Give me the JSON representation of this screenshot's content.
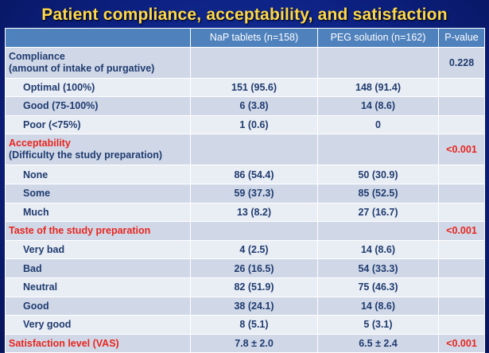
{
  "title": "Patient compliance, acceptability, and satisfaction",
  "headers": [
    "",
    "NaP tablets (n=158)",
    "PEG solution (n=162)",
    "P-value"
  ],
  "sections": {
    "compliance": {
      "label": "Compliance",
      "sublabel": "(amount of intake of purgative)",
      "p": "0.228",
      "rows": [
        {
          "label": "Optimal (100%)",
          "nap": "151 (95.6)",
          "peg": "148 (91.4)"
        },
        {
          "label": "Good (75-100%)",
          "nap": "6 (3.8)",
          "peg": "14 (8.6)"
        },
        {
          "label": "Poor (<75%)",
          "nap": "1 (0.6)",
          "peg": "0"
        }
      ]
    },
    "acceptability": {
      "label": "Acceptability",
      "sublabel": "(Difficulty the study preparation)",
      "p": "<0.001",
      "rows": [
        {
          "label": "None",
          "nap": "86 (54.4)",
          "peg": "50 (30.9)"
        },
        {
          "label": "Some",
          "nap": "59 (37.3)",
          "peg": "85 (52.5)"
        },
        {
          "label": "Much",
          "nap": "13 (8.2)",
          "peg": "27 (16.7)"
        }
      ]
    },
    "taste": {
      "label": "Taste of the study preparation",
      "p": "<0.001",
      "rows": [
        {
          "label": "Very bad",
          "nap": "4 (2.5)",
          "peg": "14 (8.6)"
        },
        {
          "label": "Bad",
          "nap": "26 (16.5)",
          "peg": "54 (33.3)"
        },
        {
          "label": "Neutral",
          "nap": "82 (51.9)",
          "peg": "75 (46.3)"
        },
        {
          "label": "Good",
          "nap": "38 (24.1)",
          "peg": "14 (8.6)"
        },
        {
          "label": "Very good",
          "nap": "8 (5.1)",
          "peg": "5 (3.1)"
        }
      ]
    },
    "satisfaction": {
      "label": "Satisfaction level (VAS)",
      "nap": "7.8 ± 2.0",
      "peg": "6.5 ± 2.4",
      "p": "<0.001"
    }
  },
  "colors": {
    "title": "#ffd84a",
    "header_bg": "#4f81bd",
    "row_dark": "#d0d8e8",
    "row_light": "#e9edf4",
    "text_blue": "#1f3b6f",
    "text_red": "#e8251c",
    "background": "#0c2080"
  }
}
